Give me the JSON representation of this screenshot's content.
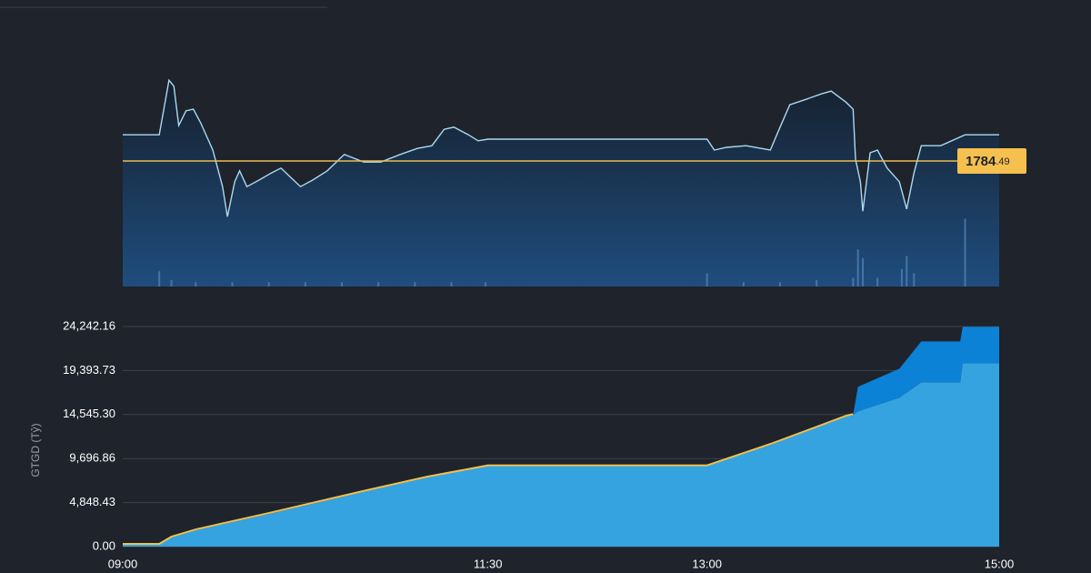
{
  "chart_data": [
    {
      "type": "line",
      "xlim": [
        "09:00",
        "15:00"
      ],
      "ylim": [
        1761.5,
        1801.5
      ],
      "y2lim": [
        0,
        100
      ],
      "reference": 1784.49,
      "reference_color": "#e8bd52",
      "series": [
        {
          "type": "line",
          "color": "#a9daf2",
          "x": [
            "09:00",
            "09:15",
            "09:17",
            "09:19",
            "09:21",
            "09:23",
            "09:26",
            "09:29",
            "09:32",
            "09:37",
            "09:41",
            "09:43",
            "09:46",
            "09:48",
            "09:51",
            "09:56",
            "10:01",
            "10:05",
            "10:09",
            "10:13",
            "10:18",
            "10:24",
            "10:31",
            "10:39",
            "10:46",
            "10:54",
            "11:01",
            "11:07",
            "11:12",
            "11:16",
            "11:22",
            "11:26",
            "11:30",
            "13:00",
            "13:03",
            "13:08",
            "13:16",
            "13:26",
            "13:30",
            "13:34",
            "13:40",
            "13:47",
            "13:51",
            "13:57",
            "14:00",
            "14:01",
            "14:03",
            "14:04",
            "14:07",
            "14:10",
            "14:14",
            "14:19",
            "14:22",
            "14:25",
            "14:28",
            "14:36",
            "14:46",
            "15:00"
          ],
          "values": [
            1789.3,
            1789.3,
            1794.3,
            1799.3,
            1798.2,
            1791,
            1793.7,
            1794,
            1791.5,
            1786.5,
            1779.8,
            1774.3,
            1780.7,
            1782.7,
            1779.8,
            1781,
            1782.3,
            1783.2,
            1781.5,
            1779.8,
            1781,
            1782.7,
            1785.7,
            1784.3,
            1784.3,
            1785.7,
            1786.8,
            1787.3,
            1790.3,
            1790.7,
            1789.3,
            1788.2,
            1788.5,
            1788.5,
            1786.5,
            1787,
            1787.3,
            1786.5,
            1790.7,
            1794.8,
            1795.7,
            1796.8,
            1797.3,
            1795.3,
            1794,
            1784.8,
            1780.7,
            1775.3,
            1786,
            1786.5,
            1783.2,
            1780.7,
            1775.7,
            1782.3,
            1787.3,
            1787.3,
            1789.3,
            1789.3
          ]
        },
        {
          "type": "bar",
          "axis": "y2",
          "color": "#4d7fb3",
          "x": [
            "09:15",
            "09:20",
            "09:30",
            "09:45",
            "10:00",
            "10:15",
            "10:30",
            "10:45",
            "11:00",
            "11:15",
            "11:29",
            "13:00",
            "13:15",
            "13:30",
            "13:45",
            "14:00",
            "14:02",
            "14:04",
            "14:10",
            "14:20",
            "14:22",
            "14:25",
            "14:46"
          ],
          "values": [
            7,
            3,
            2,
            2,
            2,
            2,
            2,
            2,
            2,
            2,
            2,
            6,
            2,
            2,
            3,
            4,
            17,
            13,
            4,
            8,
            14,
            6,
            31
          ]
        }
      ]
    },
    {
      "type": "area",
      "y_label": "GTGD (Tỷ)",
      "xlim": [
        "09:00",
        "15:00"
      ],
      "ylim": [
        0,
        24242.16
      ],
      "xticks": [
        "09:00",
        "11:30",
        "13:00",
        "15:00"
      ],
      "yticks": [
        {
          "value": 0,
          "label": "0.00"
        },
        {
          "value": 4848.43,
          "label": "4,848.43"
        },
        {
          "value": 9696.86,
          "label": "9,696.86"
        },
        {
          "value": 14545.3,
          "label": "14,545.30"
        },
        {
          "value": 19393.73,
          "label": "19,393.73"
        },
        {
          "value": 24242.16,
          "label": "24,242.16"
        }
      ],
      "grid": true,
      "x": [
        "09:00",
        "09:15",
        "09:20",
        "09:30",
        "10:00",
        "10:40",
        "11:05",
        "11:30",
        "13:00",
        "13:27",
        "13:57",
        "14:00",
        "14:02",
        "14:19",
        "14:28",
        "14:44",
        "14:45",
        "15:00"
      ],
      "series": [
        {
          "type": "area",
          "color": "#35a3e0",
          "values": [
            300,
            300,
            1000,
            1800,
            3600,
            6100,
            7600,
            8900,
            8900,
            11300,
            14300,
            14500,
            14900,
            16400,
            18100,
            18100,
            20200,
            20200
          ]
        },
        {
          "type": "area",
          "color": "#0b82d6",
          "values": [
            0,
            0,
            0,
            0,
            0,
            0,
            0,
            0,
            0,
            0,
            0,
            0,
            2700,
            3200,
            4500,
            4500,
            4000,
            4000
          ]
        },
        {
          "type": "line",
          "color": "#f0c050",
          "values": [
            300,
            300,
            1100,
            1900,
            3700,
            6200,
            7700,
            8950,
            8950,
            11400,
            14400,
            14600,
            null,
            null,
            null,
            null,
            null,
            null
          ]
        }
      ]
    }
  ]
}
